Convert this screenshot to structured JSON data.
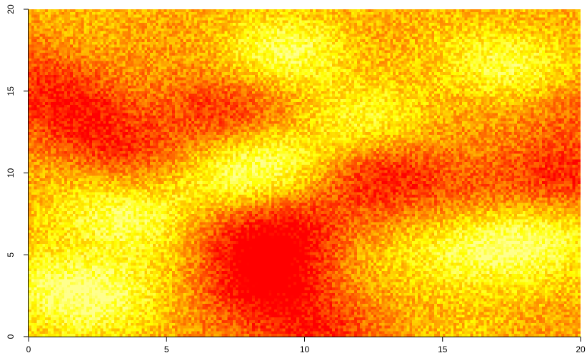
{
  "chart_data": {
    "type": "heatmap",
    "title": "",
    "xlabel": "",
    "ylabel": "",
    "xlim": [
      0,
      20
    ],
    "ylim": [
      0,
      20
    ],
    "x_ticks": [
      0,
      5,
      10,
      15,
      20
    ],
    "y_ticks": [
      0,
      5,
      10,
      15,
      20
    ],
    "x_tick_labels": [
      "0",
      "5",
      "10",
      "15",
      "20"
    ],
    "y_tick_labels": [
      "0",
      "5",
      "10",
      "15",
      "20"
    ],
    "colormap": [
      "#ff0000",
      "#ff8000",
      "#ffff00",
      "#ffff80"
    ],
    "grid": false,
    "legend": "none",
    "field_hotspots": [
      {
        "x": 1.3,
        "y": 14.0,
        "sign": -1,
        "strength": 0.9
      },
      {
        "x": 3.5,
        "y": 11.5,
        "sign": -1,
        "strength": 0.9
      },
      {
        "x": 6.8,
        "y": 13.8,
        "sign": -1,
        "strength": 1.0
      },
      {
        "x": 7.8,
        "y": 6.2,
        "sign": -1,
        "strength": 0.8
      },
      {
        "x": 9.0,
        "y": 4.0,
        "sign": -1,
        "strength": 0.9
      },
      {
        "x": 9.7,
        "y": 7.0,
        "sign": -1,
        "strength": 0.8
      },
      {
        "x": 10.0,
        "y": 0.3,
        "sign": -1,
        "strength": 1.0
      },
      {
        "x": 13.0,
        "y": 10.0,
        "sign": -1,
        "strength": 1.0
      },
      {
        "x": 19.6,
        "y": 14.0,
        "sign": -1,
        "strength": 0.8
      },
      {
        "x": 19.5,
        "y": 10.0,
        "sign": -1,
        "strength": 0.9
      },
      {
        "x": 16.0,
        "y": 8.8,
        "sign": -1,
        "strength": 0.6
      },
      {
        "x": 0.2,
        "y": 16.5,
        "sign": -1,
        "strength": 0.6
      },
      {
        "x": 8.2,
        "y": 2.5,
        "sign": -1,
        "strength": 0.7
      },
      {
        "x": 1.3,
        "y": 3.2,
        "sign": 1,
        "strength": 1.0
      },
      {
        "x": 3.6,
        "y": 7.2,
        "sign": 1,
        "strength": 1.0
      },
      {
        "x": 8.7,
        "y": 10.8,
        "sign": 1,
        "strength": 0.9
      },
      {
        "x": 9.5,
        "y": 17.3,
        "sign": 1,
        "strength": 0.9
      },
      {
        "x": 17.8,
        "y": 16.3,
        "sign": 1,
        "strength": 1.0
      },
      {
        "x": 16.0,
        "y": 5.0,
        "sign": 1,
        "strength": 1.0
      },
      {
        "x": 18.3,
        "y": 6.3,
        "sign": 1,
        "strength": 0.8
      },
      {
        "x": 3.0,
        "y": 2.0,
        "sign": 1,
        "strength": 0.6
      },
      {
        "x": 12.5,
        "y": 13.0,
        "sign": 1,
        "strength": 0.6
      },
      {
        "x": 6.8,
        "y": 9.2,
        "sign": 1,
        "strength": 0.6
      }
    ]
  }
}
